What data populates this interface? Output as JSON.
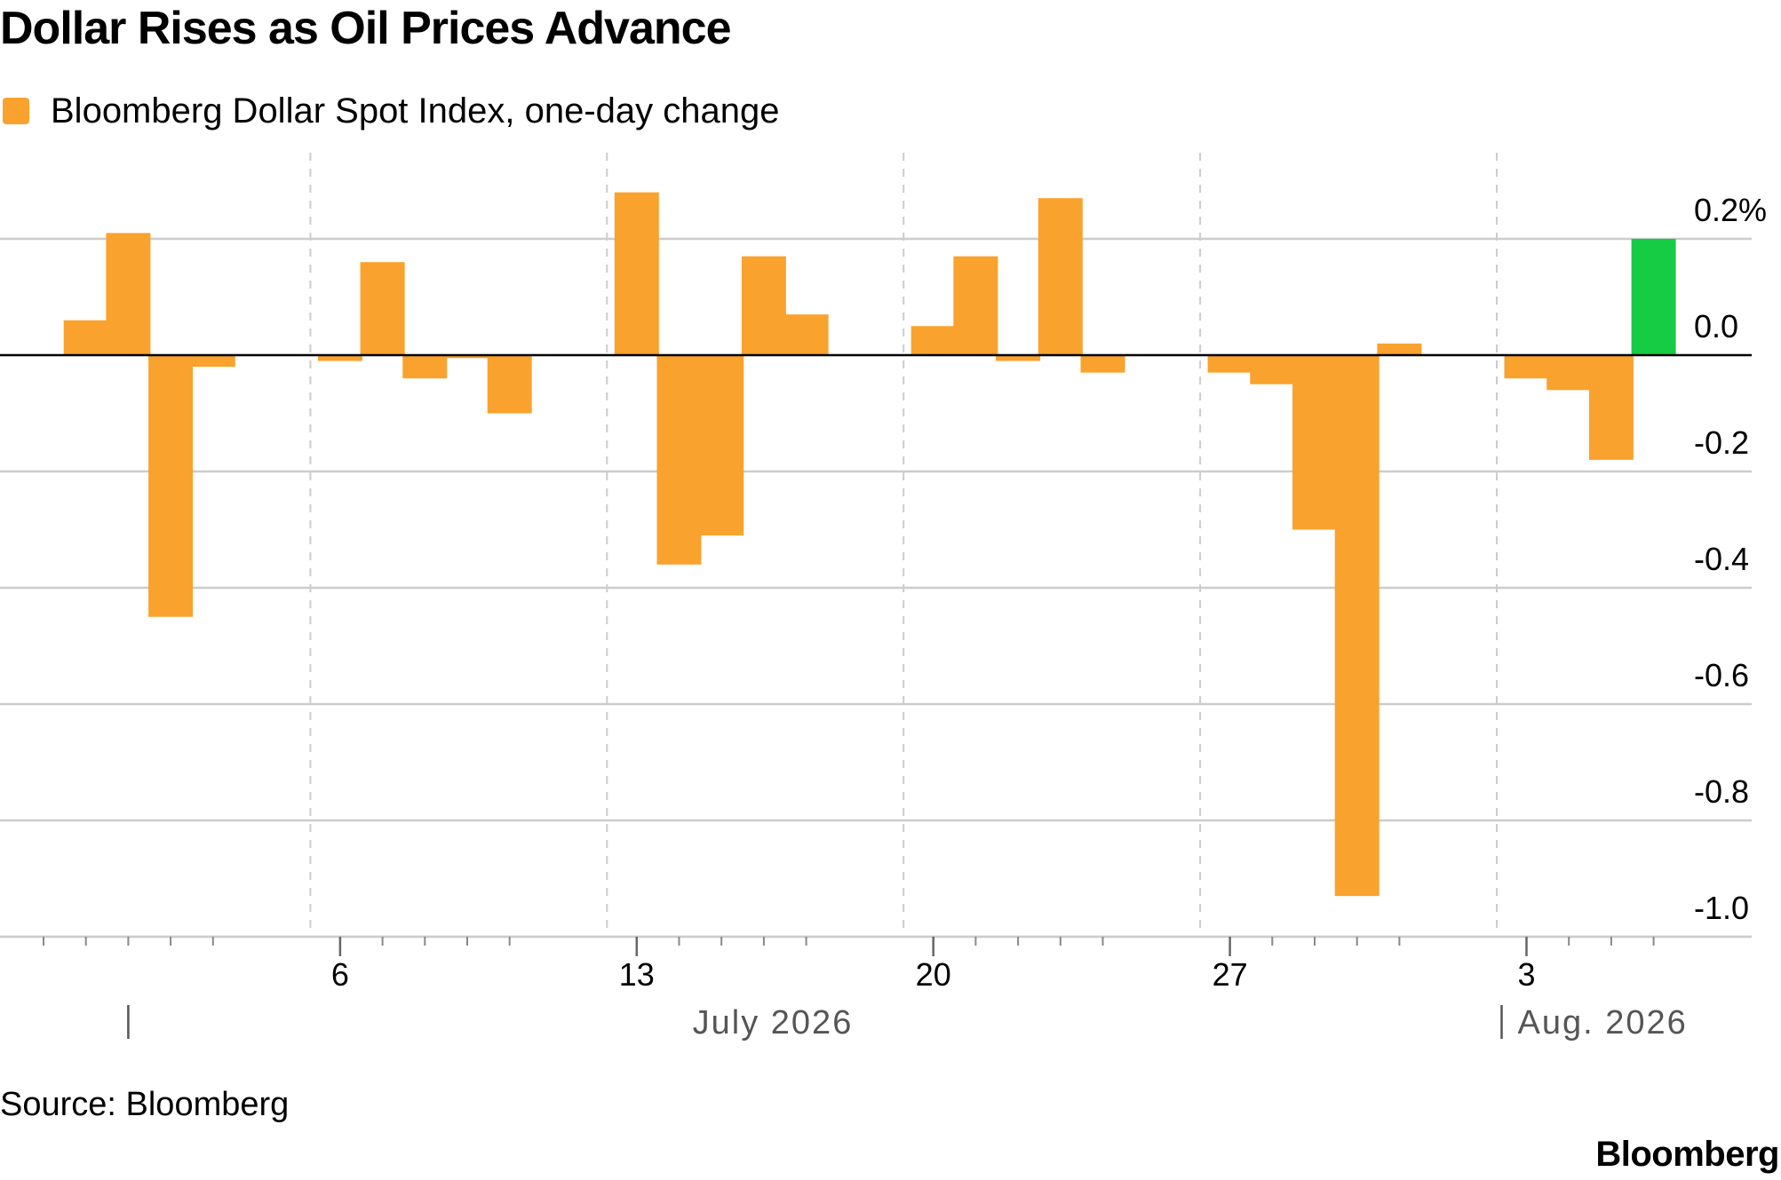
{
  "title": "Dollar Rises as Oil Prices Advance",
  "source": "Source: Bloomberg",
  "brand": "Bloomberg",
  "colors": {
    "up_down": "#f9a22e",
    "latest": "#16cc44",
    "grid": "#cccccc",
    "axis": "#000000",
    "tick_text": "#000000",
    "month_text": "#555555"
  },
  "chart_data": {
    "type": "bar",
    "title": "Dollar Rises as Oil Prices Advance",
    "legend": {
      "entries": [
        "Bloomberg Dollar Spot Index, one-day change"
      ],
      "placement": "top-left"
    },
    "series": [
      {
        "name": "Bloomberg Dollar Spot Index, one-day change",
        "points": [
          {
            "date": "2026-06-30",
            "value": 0.06
          },
          {
            "date": "2026-07-01",
            "value": 0.21
          },
          {
            "date": "2026-07-02",
            "value": -0.45
          },
          {
            "date": "2026-07-03",
            "value": -0.02
          },
          {
            "date": "2026-07-06",
            "value": -0.01
          },
          {
            "date": "2026-07-07",
            "value": 0.16
          },
          {
            "date": "2026-07-08",
            "value": -0.04
          },
          {
            "date": "2026-07-09",
            "value": -0.005
          },
          {
            "date": "2026-07-10",
            "value": -0.1
          },
          {
            "date": "2026-07-13",
            "value": 0.28
          },
          {
            "date": "2026-07-14",
            "value": -0.36
          },
          {
            "date": "2026-07-15",
            "value": -0.31
          },
          {
            "date": "2026-07-16",
            "value": 0.17
          },
          {
            "date": "2026-07-17",
            "value": 0.07
          },
          {
            "date": "2026-07-20",
            "value": 0.05
          },
          {
            "date": "2026-07-21",
            "value": 0.17
          },
          {
            "date": "2026-07-22",
            "value": -0.01
          },
          {
            "date": "2026-07-23",
            "value": 0.27
          },
          {
            "date": "2026-07-24",
            "value": -0.03
          },
          {
            "date": "2026-07-27",
            "value": -0.03
          },
          {
            "date": "2026-07-28",
            "value": -0.05
          },
          {
            "date": "2026-07-29",
            "value": -0.3
          },
          {
            "date": "2026-07-30",
            "value": -0.93
          },
          {
            "date": "2026-07-31",
            "value": 0.02
          },
          {
            "date": "2026-08-03",
            "value": -0.04
          },
          {
            "date": "2026-08-04",
            "value": -0.06
          },
          {
            "date": "2026-08-05",
            "value": -0.18
          },
          {
            "date": "2026-08-06",
            "value": 0.2
          }
        ]
      }
    ],
    "y_axis": {
      "min": -1.0,
      "max": 0.2,
      "ticks": [
        0.2,
        0.0,
        -0.2,
        -0.4,
        -0.6,
        -0.8,
        -1.0
      ],
      "tick_labels": [
        "0.2%",
        "0.0",
        "-0.2",
        "-0.4",
        "-0.6",
        "-0.8",
        "-1.0"
      ],
      "position": "right"
    },
    "x_axis": {
      "range": [
        "2026-06-29",
        "2026-08-07"
      ],
      "tick_labels": [
        {
          "date": "2026-07-06",
          "label": "6"
        },
        {
          "date": "2026-07-13",
          "label": "13"
        },
        {
          "date": "2026-07-20",
          "label": "20"
        },
        {
          "date": "2026-07-27",
          "label": "27"
        },
        {
          "date": "2026-08-03",
          "label": "3"
        }
      ],
      "month_labels": [
        {
          "label": "July 2026",
          "start": "2026-07-01",
          "end": "2026-07-31"
        },
        {
          "label": "Aug. 2026",
          "start": "2026-08-01",
          "end": "2026-08-07"
        }
      ]
    },
    "grid": true,
    "week_separators": true
  }
}
